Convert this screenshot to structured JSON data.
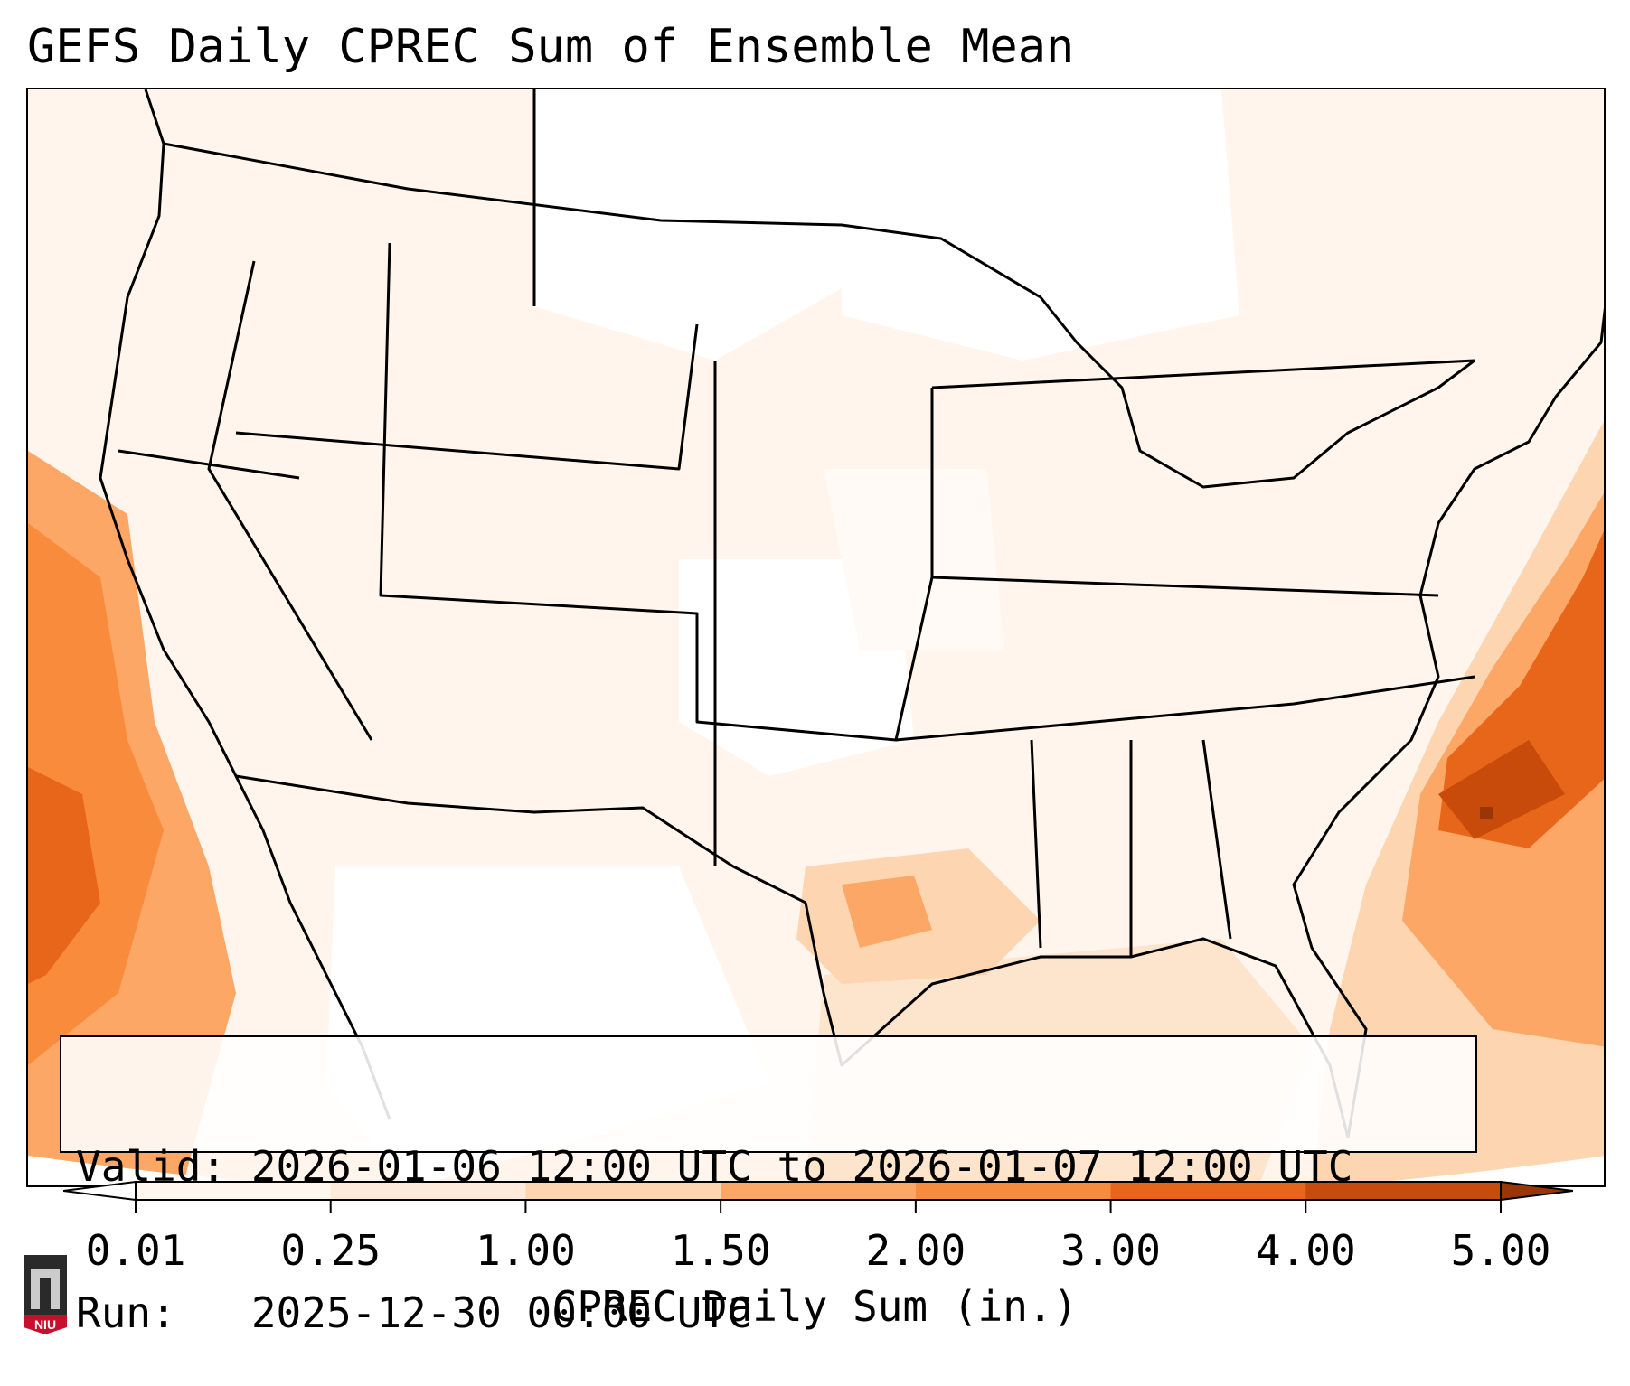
{
  "header": {
    "title": "GEFS Daily CPREC Sum of Ensemble Mean"
  },
  "info_box": {
    "valid_line": "Valid: 2026-01-06 12:00 UTC to 2026-01-07 12:00 UTC",
    "run_line": "Run:   2025-12-30 00:00 UTC"
  },
  "colorbar": {
    "label": "CPREC Daily Sum (in.)",
    "ticks": [
      "0.01",
      "0.25",
      "1.00",
      "1.50",
      "2.00",
      "3.00",
      "4.00",
      "5.00"
    ],
    "colors": [
      "#fff6ee",
      "#feead8",
      "#fdd5b0",
      "#fca766",
      "#f98b3c",
      "#e8661a",
      "#c94b0c",
      "#9a3508"
    ]
  },
  "logo": {
    "text": "NIU"
  },
  "map_data": {
    "precip_areas": [
      {
        "region": "Pacific coast offshore",
        "level": "2.00-3.00 in."
      },
      {
        "region": "Western Atlantic off Carolinas",
        "level": "3.00-5.00 in."
      },
      {
        "region": "East Texas / Louisiana",
        "level": "1.00-1.50 in."
      },
      {
        "region": "Gulf of Mexico",
        "level": "0.25-1.00 in."
      },
      {
        "region": "Interior CONUS",
        "level": "0.01-0.25 in."
      }
    ]
  }
}
